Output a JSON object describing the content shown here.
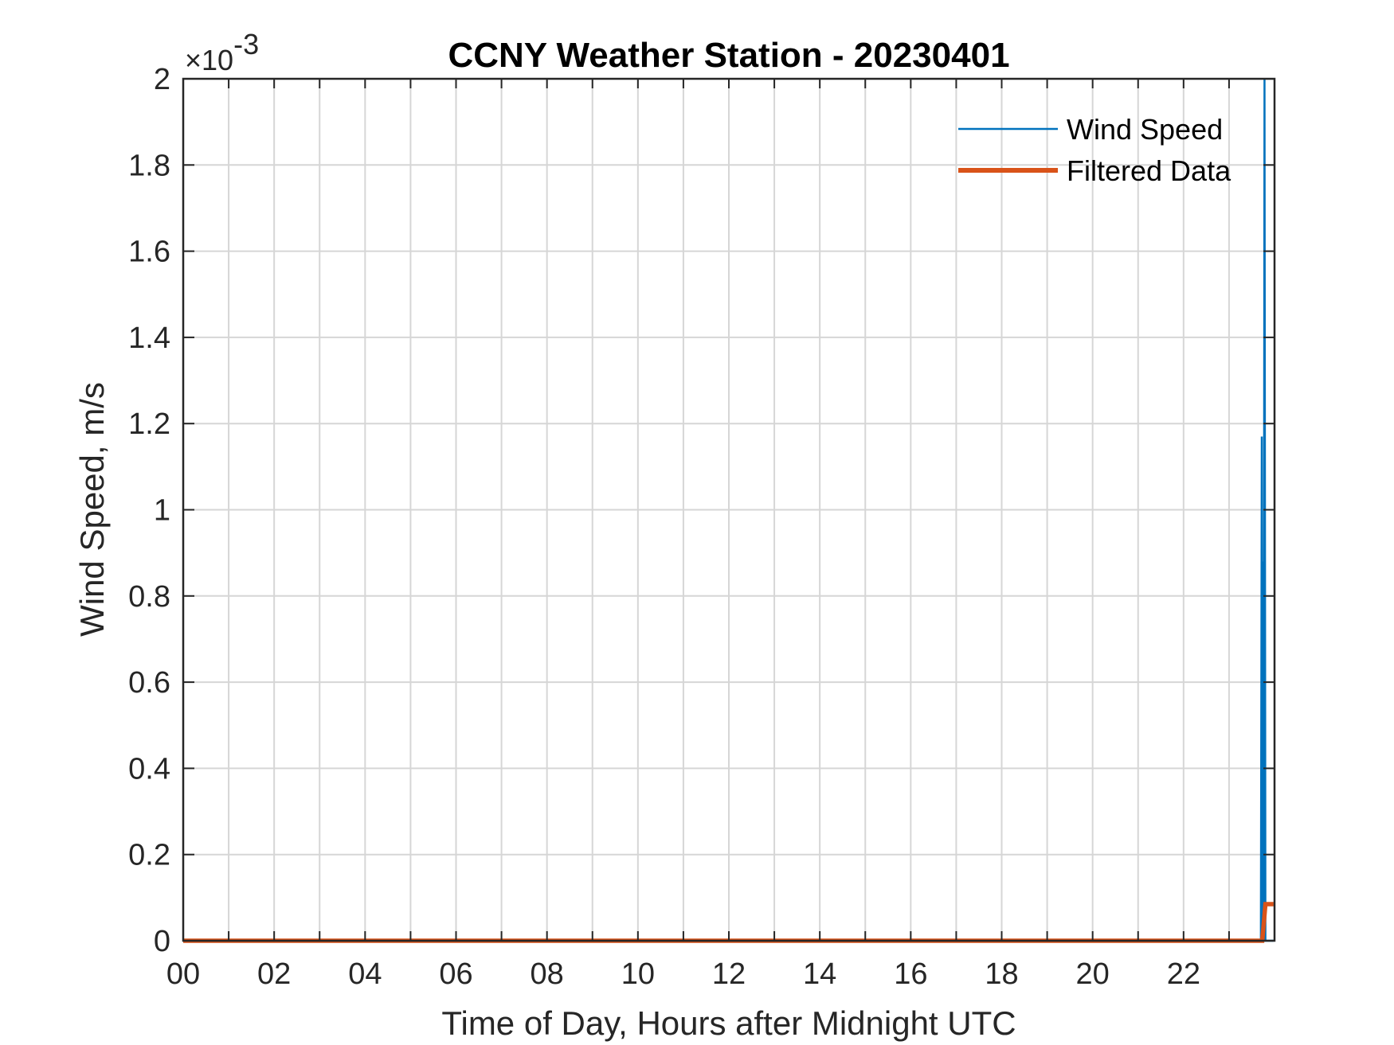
{
  "chart_data": {
    "type": "line",
    "title": "CCNY Weather Station - 20230401",
    "xlabel": "Time of Day, Hours after Midnight UTC",
    "ylabel": "Wind Speed, m/s",
    "xlim": [
      0,
      24
    ],
    "ylim": [
      0,
      0.002
    ],
    "x_ticks": [
      0,
      2,
      4,
      6,
      8,
      10,
      12,
      14,
      16,
      18,
      20,
      22
    ],
    "x_tick_labels": [
      "00",
      "02",
      "04",
      "06",
      "08",
      "10",
      "12",
      "14",
      "16",
      "18",
      "20",
      "22"
    ],
    "y_ticks": [
      0,
      0.0002,
      0.0004,
      0.0006,
      0.0008,
      0.001,
      0.0012,
      0.0014,
      0.0016,
      0.0018,
      0.002
    ],
    "y_tick_labels": [
      "0",
      "0.2",
      "0.4",
      "0.6",
      "0.8",
      "1",
      "1.2",
      "1.4",
      "1.6",
      "1.8",
      "2"
    ],
    "y_exponent": {
      "times": "×",
      "base": "10",
      "power": "-3"
    },
    "grid": true,
    "legend_position": "top-right",
    "series": [
      {
        "name": "Wind Speed",
        "color": "#0072BD",
        "points": [
          [
            0,
            0
          ],
          [
            23.7,
            0
          ],
          [
            23.72,
            0.00117
          ],
          [
            23.73,
            0
          ],
          [
            23.75,
            0.00088
          ],
          [
            23.76,
            0
          ],
          [
            23.78,
            0.002
          ],
          [
            23.8,
            0
          ],
          [
            23.98,
            0
          ]
        ]
      },
      {
        "name": "Filtered Data",
        "color": "#D95319",
        "points": [
          [
            0,
            0
          ],
          [
            23.73,
            0
          ],
          [
            23.8,
            8.5e-05
          ],
          [
            23.98,
            8.5e-05
          ]
        ]
      }
    ]
  }
}
